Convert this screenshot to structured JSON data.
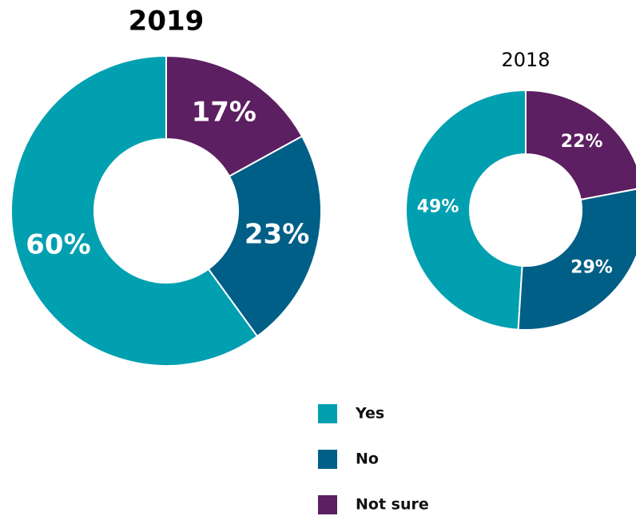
{
  "chart_data": [
    {
      "type": "pie",
      "title": "2019",
      "categories": [
        "Yes",
        "No",
        "Not sure"
      ],
      "values": [
        60,
        23,
        17
      ],
      "value_labels": [
        "60%",
        "23%",
        "17%"
      ],
      "colors": [
        "#00a0b0",
        "#005f87",
        "#5c1f61"
      ]
    },
    {
      "type": "pie",
      "title": "2018",
      "categories": [
        "Yes",
        "No",
        "Not sure"
      ],
      "values": [
        49,
        29,
        22
      ],
      "value_labels": [
        "49%",
        "29%",
        "22%"
      ],
      "colors": [
        "#00a0b0",
        "#005f87",
        "#5c1f61"
      ]
    }
  ]
}
